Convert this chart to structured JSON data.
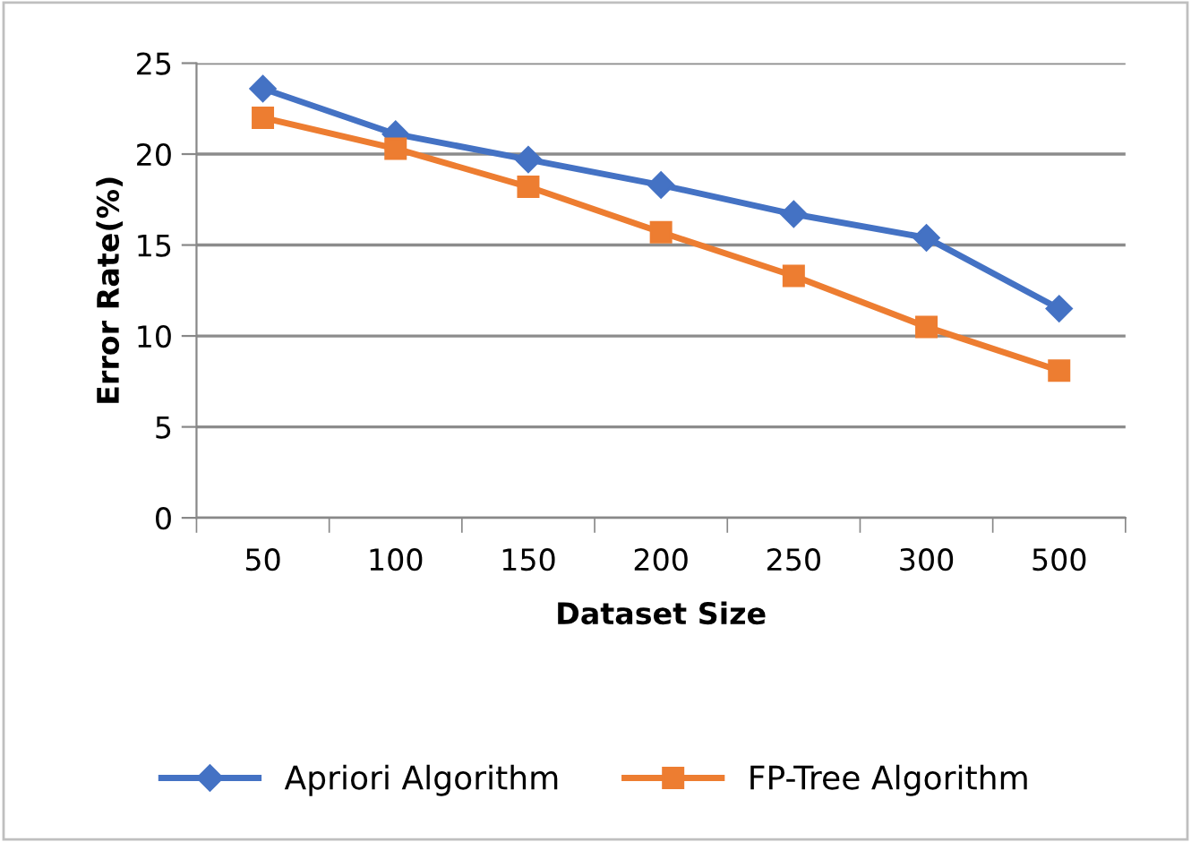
{
  "chart_data": {
    "type": "line",
    "xlabel": "Dataset Size",
    "ylabel": "Error Rate(%)",
    "categories": [
      "50",
      "100",
      "150",
      "200",
      "250",
      "300",
      "500"
    ],
    "series": [
      {
        "name": "Apriori Algorithm",
        "color": "#4472c4",
        "marker": "diamond",
        "values": [
          23.6,
          21.1,
          19.7,
          18.3,
          16.7,
          15.4,
          11.5
        ]
      },
      {
        "name": "FP-Tree Algorithm",
        "color": "#ed7d31",
        "marker": "square",
        "values": [
          22.0,
          20.3,
          18.2,
          15.7,
          13.3,
          10.5,
          8.1
        ]
      }
    ],
    "ylim": [
      0,
      25
    ],
    "yticks": [
      0,
      5,
      10,
      15,
      20,
      25
    ],
    "grid": "y",
    "legend": "bottom",
    "line_style": "solid"
  }
}
